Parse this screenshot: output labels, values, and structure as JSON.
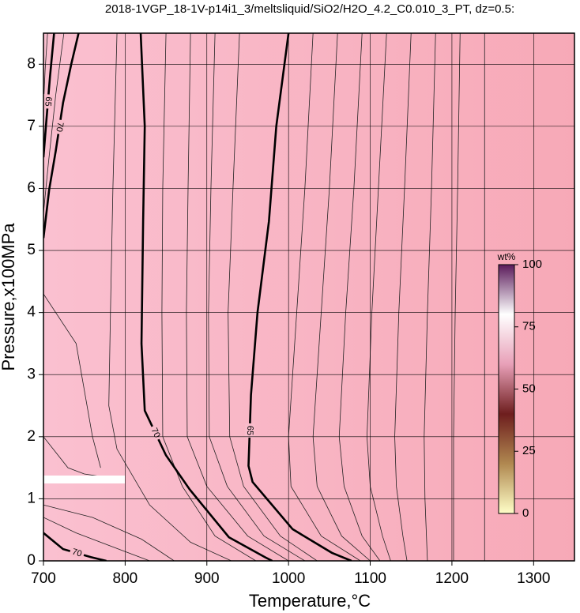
{
  "chart_data": {
    "type": "contour",
    "title": "2018-1VGP_18-1V-p14i1_3/meltsliquid/SiO2/H2O_4.2_C0.010_3_PT, dz=0.5:",
    "x_label": "Temperature,°C",
    "y_label": "Pressure,x100MPa",
    "xlim": [
      700,
      1350
    ],
    "ylim": [
      0,
      8.5
    ],
    "xticks": [
      700,
      800,
      900,
      1000,
      1100,
      1200,
      1300
    ],
    "yticks": [
      0,
      1,
      2,
      3,
      4,
      5,
      6,
      7,
      8
    ],
    "grid": true,
    "fill_colors": [
      "#fac0d0",
      "#f7a9b7"
    ],
    "contours": [
      {
        "level": 70,
        "x": [
          819,
          824,
          822,
          820,
          824,
          850,
          879,
          927,
          971,
          980
        ],
        "y": [
          8.5,
          7.0,
          5.47,
          3.5,
          2.42,
          1.7,
          1.15,
          0.38,
          0.06,
          0
        ]
      },
      {
        "level": 65,
        "x": [
          1000,
          985,
          976,
          962,
          954,
          951,
          956,
          1005,
          1053,
          1077
        ],
        "y": [
          8.5,
          7.0,
          5.47,
          4.0,
          2.67,
          1.53,
          1.27,
          0.51,
          0.13,
          0
        ]
      },
      {
        "level": 70,
        "x": [
          743,
          734,
          724,
          715,
          707,
          700
        ],
        "y": [
          8.5,
          8.0,
          7.38,
          6.6,
          5.98,
          5.2
        ]
      },
      {
        "level": 65,
        "x": [
          713,
          708,
          703,
          700
        ],
        "y": [
          8.5,
          7.8,
          7.0,
          6.5
        ]
      },
      {
        "level": 70,
        "x": [
          700,
          724,
          758,
          777
        ],
        "y": [
          0.45,
          0.19,
          0.06,
          0
        ]
      }
    ],
    "thin_contours": [
      {
        "x": [
          705,
          702,
          700
        ],
        "y": [
          8.5,
          7.9,
          7.3
        ]
      },
      {
        "x": [
          725,
          715,
          706,
          700
        ],
        "y": [
          8.5,
          7.5,
          6.4,
          5.6
        ]
      },
      {
        "x": [
          790,
          785,
          782,
          780,
          790,
          830,
          880,
          930
        ],
        "y": [
          8.5,
          6.0,
          4.0,
          2.5,
          1.8,
          0.9,
          0.3,
          0
        ]
      },
      {
        "x": [
          850,
          846,
          845,
          846,
          870,
          910,
          960
        ],
        "y": [
          8.5,
          6.0,
          4.0,
          2.0,
          1.2,
          0.4,
          0
        ]
      },
      {
        "x": [
          880,
          877,
          875,
          876,
          900,
          950,
          1000
        ],
        "y": [
          8.5,
          6.0,
          4.0,
          2.0,
          1.2,
          0.4,
          0
        ]
      },
      {
        "x": [
          910,
          905,
          902,
          903,
          925,
          970,
          1020
        ],
        "y": [
          8.5,
          6.0,
          4.0,
          2.0,
          1.2,
          0.4,
          0
        ]
      },
      {
        "x": [
          940,
          932,
          926,
          928,
          945,
          990,
          1035
        ],
        "y": [
          8.5,
          6.0,
          4.0,
          2.0,
          1.2,
          0.4,
          0
        ]
      },
      {
        "x": [
          1030,
          1020,
          1010,
          1000,
          1003,
          1040,
          1088
        ],
        "y": [
          8.5,
          6.0,
          4.0,
          2.0,
          1.2,
          0.4,
          0
        ]
      },
      {
        "x": [
          1060,
          1050,
          1040,
          1030,
          1035,
          1065,
          1100
        ],
        "y": [
          8.5,
          6.0,
          4.0,
          2.0,
          1.2,
          0.4,
          0
        ]
      },
      {
        "x": [
          1090,
          1080,
          1070,
          1062,
          1068,
          1090,
          1112
        ],
        "y": [
          8.5,
          6.0,
          4.0,
          2.0,
          1.2,
          0.4,
          0
        ]
      },
      {
        "x": [
          1120,
          1110,
          1102,
          1096,
          1100,
          1115,
          1125
        ],
        "y": [
          8.5,
          6.0,
          4.0,
          2.0,
          1.2,
          0.4,
          0
        ]
      },
      {
        "x": [
          1150,
          1142,
          1135,
          1130,
          1132,
          1140,
          1145
        ],
        "y": [
          8.5,
          6.0,
          4.0,
          2.0,
          1.2,
          0.4,
          0
        ]
      },
      {
        "x": [
          1180,
          1175,
          1170,
          1166,
          1167,
          1170
        ],
        "y": [
          8.5,
          6.0,
          4.0,
          2.0,
          1.0,
          0
        ]
      },
      {
        "x": [
          1210,
          1207,
          1204,
          1202,
          1202
        ],
        "y": [
          8.5,
          6.0,
          4.0,
          2.0,
          0
        ]
      },
      {
        "x": [
          1240,
          1240,
          1240,
          1240
        ],
        "y": [
          8.5,
          6.0,
          3.0,
          0
        ]
      },
      {
        "x": [
          700,
          740,
          760,
          770
        ],
        "y": [
          4.3,
          3.5,
          2.0,
          1.5
        ]
      },
      {
        "x": [
          700,
          730,
          750,
          800
        ],
        "y": [
          2.0,
          1.5,
          1.4,
          1.3
        ]
      },
      {
        "x": [
          700,
          760,
          820,
          860
        ],
        "y": [
          0.9,
          0.7,
          0.35,
          0
        ]
      },
      {
        "x": [
          700,
          740,
          800,
          830
        ],
        "y": [
          0.7,
          0.45,
          0.15,
          0
        ]
      }
    ],
    "colorbar": {
      "label": "wt%",
      "lim": [
        0,
        100
      ],
      "ticks": [
        0,
        25,
        50,
        75,
        100
      ],
      "colors": [
        "#ffffc8",
        "#b08850",
        "#6e1e1e",
        "#e8a0b8",
        "#ffffff",
        "#5a1a5a"
      ]
    }
  }
}
